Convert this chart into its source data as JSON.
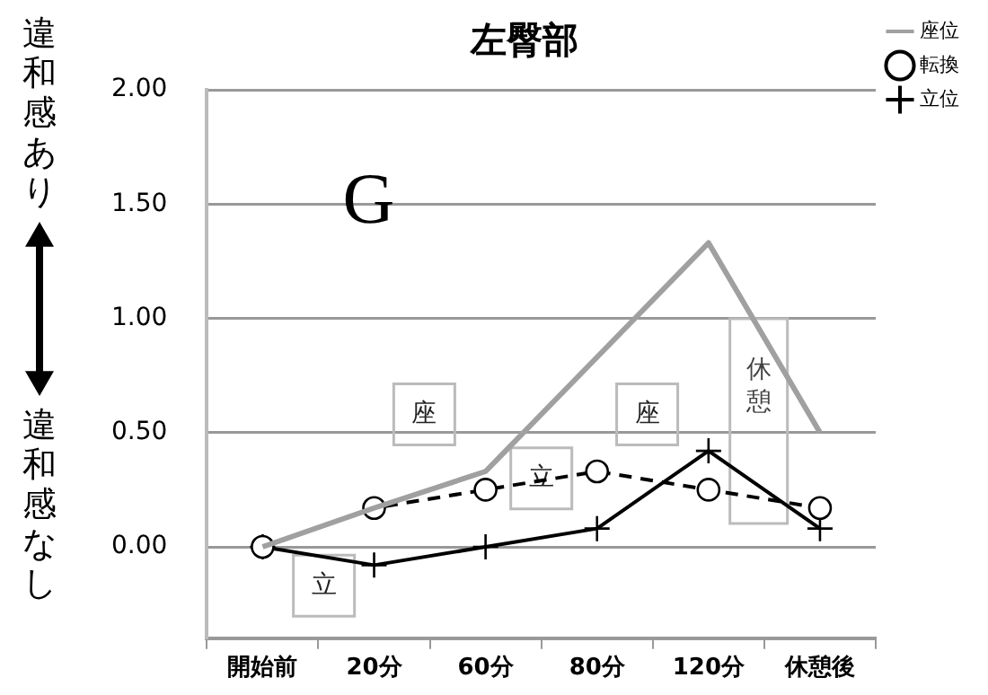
{
  "chart_data": {
    "type": "line",
    "title": "左臀部",
    "categories": [
      "開始前",
      "20分",
      "60分",
      "80分",
      "120分",
      "休憩後"
    ],
    "series": [
      {
        "name": "座位",
        "color": "#a0a0a0",
        "values": [
          0,
          0.17,
          0.33,
          0.83,
          1.33,
          0.5
        ],
        "marker": "none",
        "line_style": "solid"
      },
      {
        "name": "転換",
        "color": "#000000",
        "values": [
          0,
          0.17,
          0.25,
          0.33,
          0.25,
          0.17
        ],
        "marker": "circle",
        "line_style": "dashed"
      },
      {
        "name": "立位",
        "color": "#000000",
        "values": [
          0,
          -0.08,
          0,
          0.08,
          0.42,
          0.08
        ],
        "marker": "cross",
        "line_style": "solid"
      }
    ],
    "ylim": [
      -0.4,
      2.0
    ],
    "yticks": [
      {
        "value": 0,
        "label": "0.00"
      },
      {
        "value": 0.5,
        "label": "0.50"
      },
      {
        "value": 1,
        "label": "1.00"
      },
      {
        "value": 1.5,
        "label": "1.50"
      },
      {
        "value": 2,
        "label": "2.00"
      }
    ],
    "grid": "y",
    "legend": "top right",
    "annotations": [
      "G",
      "座",
      "立",
      "立",
      "座",
      "休憩",
      "違和感あり",
      "違和感なし"
    ]
  }
}
